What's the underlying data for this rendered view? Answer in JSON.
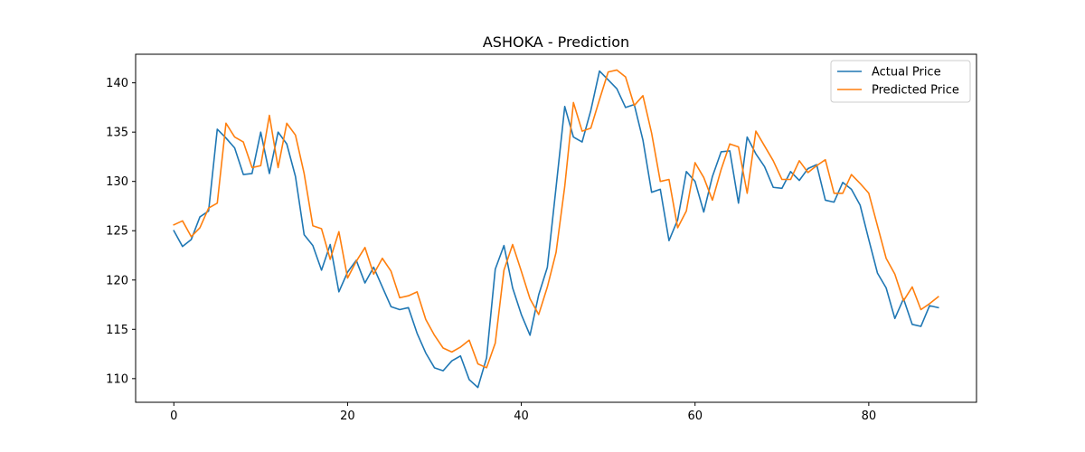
{
  "chart_data": {
    "type": "line",
    "title": "ASHOKA - Prediction",
    "xlabel": "",
    "ylabel": "",
    "xlim": [
      -4.4,
      92.4
    ],
    "ylim": [
      107.6,
      142.9
    ],
    "x_ticks": [
      0,
      20,
      40,
      60,
      80
    ],
    "y_ticks": [
      110,
      115,
      120,
      125,
      130,
      135,
      140
    ],
    "grid": false,
    "legend_position": "top-right",
    "series": [
      {
        "name": "Actual Price",
        "color": "#1f77b4",
        "values": [
          125.0,
          123.4,
          124.1,
          126.4,
          127.0,
          135.3,
          134.4,
          133.4,
          130.7,
          130.8,
          135.0,
          130.8,
          135.0,
          133.8,
          130.5,
          124.6,
          123.5,
          121.0,
          123.6,
          118.8,
          120.8,
          122.0,
          119.7,
          121.3,
          119.3,
          117.3,
          117.0,
          117.2,
          114.6,
          112.6,
          111.1,
          110.8,
          111.8,
          112.3,
          109.9,
          109.1,
          112.1,
          121.1,
          123.5,
          119.2,
          116.5,
          114.4,
          118.5,
          121.3,
          129.4,
          137.6,
          134.5,
          134.0,
          137.2,
          141.2,
          140.3,
          139.4,
          137.5,
          137.8,
          134.2,
          128.9,
          129.2,
          124.0,
          126.1,
          131.0,
          130.0,
          126.9,
          130.5,
          133.0,
          133.1,
          127.8,
          134.5,
          132.8,
          131.5,
          129.4,
          129.3,
          131.0,
          130.1,
          131.3,
          131.7,
          128.1,
          127.9,
          129.9,
          129.2,
          127.6,
          124.1,
          120.7,
          119.2,
          116.1,
          118.1,
          115.5,
          115.3,
          117.4,
          117.2
        ]
      },
      {
        "name": "Predicted Price",
        "color": "#ff7f0e",
        "values": [
          125.6,
          126.0,
          124.4,
          125.3,
          127.3,
          127.8,
          135.9,
          134.5,
          134.0,
          131.4,
          131.6,
          136.7,
          131.4,
          135.9,
          134.7,
          130.8,
          125.5,
          125.2,
          122.1,
          124.9,
          120.2,
          121.9,
          123.3,
          120.6,
          122.2,
          120.9,
          118.2,
          118.4,
          118.8,
          116.0,
          114.4,
          113.1,
          112.7,
          113.2,
          113.9,
          111.5,
          111.1,
          113.6,
          121.0,
          123.6,
          120.9,
          118.1,
          116.5,
          119.3,
          122.8,
          129.5,
          138.0,
          135.1,
          135.4,
          138.3,
          141.1,
          141.3,
          140.6,
          137.7,
          138.7,
          134.9,
          130.0,
          130.2,
          125.3,
          127.0,
          131.9,
          130.4,
          128.1,
          131.2,
          133.8,
          133.5,
          128.8,
          135.1,
          133.6,
          132.1,
          130.2,
          130.2,
          132.1,
          130.9,
          131.6,
          132.2,
          128.8,
          128.8,
          130.7,
          129.8,
          128.8,
          125.5,
          122.2,
          120.6,
          117.9,
          119.3,
          117.0,
          117.6,
          118.3
        ]
      }
    ]
  }
}
